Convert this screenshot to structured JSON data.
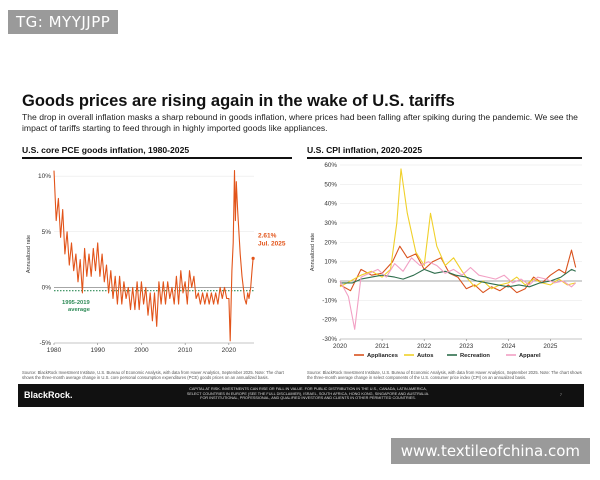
{
  "watermarks": {
    "top": "TG: MYYJJPP",
    "bottom": "www.textileofchina.com"
  },
  "slide": {
    "title": "Goods prices are rising again in the wake of U.S. tariffs",
    "subtitle": "The drop in overall inflation masks a sharp rebound in goods inflation, where prices had been falling after spiking during the pandemic. We see the impact of tariffs starting to feed through in highly imported goods like appliances."
  },
  "colors": {
    "pce": "#e2541a",
    "avg": "#2e8b57",
    "appliances": "#d9531e",
    "autos": "#f0d02a",
    "recreation": "#2f6e4d",
    "apparel": "#f2a0c4"
  },
  "chart_data": [
    {
      "type": "line",
      "title": "U.S. core PCE goods inflation, 1980-2025",
      "ylabel": "Annualized rate",
      "ylim": [
        -5,
        11
      ],
      "yticks": [
        10,
        5,
        0,
        -5
      ],
      "ytick_labels": [
        "10%",
        "5%",
        "0%",
        "-5%"
      ],
      "xlim": [
        1980,
        2025.75
      ],
      "xticks": [
        1980,
        1990,
        2000,
        2010,
        2020
      ],
      "xtick_labels": [
        "1980",
        "1990",
        "2000",
        "2010",
        "2020"
      ],
      "annotations": {
        "latest_value": "2.61%",
        "latest_date": "Jul. 2025",
        "average_label_1": "1995-2019",
        "average_label_2": "average"
      },
      "average": {
        "label": "1995-2019 average",
        "value": -0.3,
        "range": [
          1995,
          2019
        ]
      },
      "series": [
        {
          "name": "Core PCE goods",
          "points": [
            [
              1980,
              10.5
            ],
            [
              1980.5,
              6
            ],
            [
              1981,
              8
            ],
            [
              1981.5,
              4.5
            ],
            [
              1982,
              7
            ],
            [
              1982.5,
              3
            ],
            [
              1983,
              5
            ],
            [
              1983.5,
              2
            ],
            [
              1984,
              4
            ],
            [
              1984.5,
              1.5
            ],
            [
              1985,
              3
            ],
            [
              1985.5,
              0.5
            ],
            [
              1986,
              2.5
            ],
            [
              1986.5,
              -0.5
            ],
            [
              1987,
              3.5
            ],
            [
              1987.5,
              1
            ],
            [
              1988,
              3
            ],
            [
              1988.5,
              1
            ],
            [
              1989,
              3.5
            ],
            [
              1989.5,
              1.5
            ],
            [
              1990,
              4
            ],
            [
              1990.5,
              1
            ],
            [
              1991,
              3
            ],
            [
              1991.5,
              0.5
            ],
            [
              1992,
              2
            ],
            [
              1992.5,
              -0.5
            ],
            [
              1993,
              1.5
            ],
            [
              1993.5,
              -1
            ],
            [
              1994,
              1
            ],
            [
              1994.5,
              -1.5
            ],
            [
              1995,
              1
            ],
            [
              1995.5,
              -1.5
            ],
            [
              1996,
              0.5
            ],
            [
              1996.5,
              -1
            ],
            [
              1997,
              0
            ],
            [
              1997.5,
              -2
            ],
            [
              1998,
              0
            ],
            [
              1998.5,
              -2
            ],
            [
              1999,
              0.5
            ],
            [
              1999.5,
              -2
            ],
            [
              2000,
              0.5
            ],
            [
              2000.5,
              -1.5
            ],
            [
              2001,
              0
            ],
            [
              2001.5,
              -2.5
            ],
            [
              2002,
              -0.5
            ],
            [
              2002.5,
              -3
            ],
            [
              2003,
              -0.5
            ],
            [
              2003.5,
              -3.5
            ],
            [
              2004,
              0.5
            ],
            [
              2004.5,
              -1.5
            ],
            [
              2005,
              0.5
            ],
            [
              2005.5,
              -1.5
            ],
            [
              2006,
              0.5
            ],
            [
              2006.5,
              -1
            ],
            [
              2007,
              0
            ],
            [
              2007.5,
              -1.5
            ],
            [
              2008,
              1
            ],
            [
              2008.5,
              -1.5
            ],
            [
              2009,
              1.5
            ],
            [
              2009.5,
              -0.5
            ],
            [
              2010,
              0.5
            ],
            [
              2010.5,
              -1.5
            ],
            [
              2011,
              1.5
            ],
            [
              2011.5,
              0
            ],
            [
              2012,
              1
            ],
            [
              2012.5,
              -1
            ],
            [
              2013,
              -0.5
            ],
            [
              2013.5,
              -1.5
            ],
            [
              2014,
              -0.5
            ],
            [
              2014.5,
              -1.5
            ],
            [
              2015,
              -0.5
            ],
            [
              2015.5,
              -1.5
            ],
            [
              2016,
              -0.5
            ],
            [
              2016.5,
              -1.5
            ],
            [
              2017,
              -0.5
            ],
            [
              2017.5,
              -1.5
            ],
            [
              2018,
              0
            ],
            [
              2018.5,
              -1
            ],
            [
              2019,
              0
            ],
            [
              2019.5,
              -1
            ],
            [
              2020,
              -1
            ],
            [
              2020.3,
              -4.8
            ],
            [
              2020.7,
              1.5
            ],
            [
              2021,
              4
            ],
            [
              2021.3,
              10.5
            ],
            [
              2021.5,
              6
            ],
            [
              2021.7,
              9.5
            ],
            [
              2022,
              7
            ],
            [
              2022.3,
              5
            ],
            [
              2022.6,
              3
            ],
            [
              2023,
              1
            ],
            [
              2023.3,
              0
            ],
            [
              2023.6,
              -1
            ],
            [
              2024,
              -1.5
            ],
            [
              2024.3,
              -0.5
            ],
            [
              2024.6,
              -1
            ],
            [
              2025,
              0
            ],
            [
              2025.3,
              1.5
            ],
            [
              2025.55,
              2.61
            ]
          ]
        }
      ],
      "source": "Source: BlackRock Investment Institute, U.S. Bureau of Economic Analysis, with data from Haver Analytics, September 2025. Note: The chart shows the three-month average change in U.S. core personal consumption expenditures (PCE) goods prices on an annualized basis."
    },
    {
      "type": "line",
      "title": "U.S. CPI inflation, 2020-2025",
      "ylabel": "Annualized rate",
      "ylim": [
        -30,
        60
      ],
      "yticks": [
        60,
        50,
        40,
        30,
        20,
        10,
        0,
        -10,
        -20,
        -30
      ],
      "ytick_labels": [
        "60%",
        "50%",
        "40%",
        "30%",
        "20%",
        "10%",
        "0%",
        "-10%",
        "-20%",
        "-30%"
      ],
      "xlim": [
        2020,
        2025.75
      ],
      "xticks": [
        2020,
        2021,
        2022,
        2023,
        2024,
        2025
      ],
      "xtick_labels": [
        "2020",
        "2021",
        "2022",
        "2023",
        "2024",
        "2025"
      ],
      "series": [
        {
          "name": "Appliances",
          "points": [
            [
              2020,
              -2
            ],
            [
              2020.25,
              -5
            ],
            [
              2020.5,
              6
            ],
            [
              2020.75,
              3
            ],
            [
              2021,
              4
            ],
            [
              2021.25,
              10
            ],
            [
              2021.42,
              18
            ],
            [
              2021.6,
              12
            ],
            [
              2021.8,
              14
            ],
            [
              2022,
              6
            ],
            [
              2022.2,
              10
            ],
            [
              2022.4,
              12
            ],
            [
              2022.6,
              4
            ],
            [
              2022.8,
              2
            ],
            [
              2023,
              -4
            ],
            [
              2023.2,
              -2
            ],
            [
              2023.4,
              -6
            ],
            [
              2023.6,
              -3
            ],
            [
              2023.8,
              -5
            ],
            [
              2024,
              -2
            ],
            [
              2024.2,
              -6
            ],
            [
              2024.4,
              -4
            ],
            [
              2024.6,
              2
            ],
            [
              2024.8,
              -1
            ],
            [
              2025,
              3
            ],
            [
              2025.2,
              6
            ],
            [
              2025.35,
              4
            ],
            [
              2025.5,
              16
            ],
            [
              2025.6,
              7
            ]
          ]
        },
        {
          "name": "Autos",
          "points": [
            [
              2020,
              -3
            ],
            [
              2020.25,
              0
            ],
            [
              2020.5,
              3
            ],
            [
              2020.75,
              5
            ],
            [
              2021,
              2
            ],
            [
              2021.2,
              6
            ],
            [
              2021.35,
              30
            ],
            [
              2021.45,
              58
            ],
            [
              2021.6,
              35
            ],
            [
              2021.8,
              15
            ],
            [
              2022,
              8
            ],
            [
              2022.15,
              35
            ],
            [
              2022.3,
              18
            ],
            [
              2022.5,
              8
            ],
            [
              2022.7,
              12
            ],
            [
              2022.9,
              5
            ],
            [
              2023,
              2
            ],
            [
              2023.2,
              -3
            ],
            [
              2023.4,
              0
            ],
            [
              2023.6,
              -4
            ],
            [
              2023.8,
              -2
            ],
            [
              2024,
              -1
            ],
            [
              2024.2,
              2
            ],
            [
              2024.4,
              -2
            ],
            [
              2024.6,
              1
            ],
            [
              2024.8,
              -1
            ],
            [
              2025,
              -2
            ],
            [
              2025.2,
              1
            ],
            [
              2025.4,
              -2
            ],
            [
              2025.6,
              -1
            ]
          ]
        },
        {
          "name": "Recreation",
          "points": [
            [
              2020,
              -1
            ],
            [
              2020.3,
              -1
            ],
            [
              2020.5,
              1
            ],
            [
              2020.75,
              2
            ],
            [
              2021,
              3
            ],
            [
              2021.3,
              2
            ],
            [
              2021.5,
              1
            ],
            [
              2021.75,
              3
            ],
            [
              2022,
              6
            ],
            [
              2022.25,
              4
            ],
            [
              2022.5,
              5
            ],
            [
              2022.75,
              3
            ],
            [
              2023,
              2
            ],
            [
              2023.25,
              0
            ],
            [
              2023.5,
              -1
            ],
            [
              2023.75,
              -2
            ],
            [
              2024,
              -3
            ],
            [
              2024.25,
              -2
            ],
            [
              2024.5,
              -3
            ],
            [
              2024.75,
              -1
            ],
            [
              2025,
              0
            ],
            [
              2025.25,
              2
            ],
            [
              2025.5,
              6
            ],
            [
              2025.6,
              5
            ]
          ]
        },
        {
          "name": "Apparel",
          "points": [
            [
              2020,
              0
            ],
            [
              2020.2,
              -8
            ],
            [
              2020.35,
              -25
            ],
            [
              2020.5,
              2
            ],
            [
              2020.7,
              4
            ],
            [
              2020.9,
              6
            ],
            [
              2021.1,
              2
            ],
            [
              2021.3,
              9
            ],
            [
              2021.5,
              5
            ],
            [
              2021.7,
              12
            ],
            [
              2021.9,
              8
            ],
            [
              2022.1,
              10
            ],
            [
              2022.3,
              8
            ],
            [
              2022.5,
              4
            ],
            [
              2022.7,
              6
            ],
            [
              2022.9,
              3
            ],
            [
              2023.1,
              7
            ],
            [
              2023.3,
              3
            ],
            [
              2023.5,
              2
            ],
            [
              2023.7,
              1
            ],
            [
              2023.9,
              3
            ],
            [
              2024.1,
              -1
            ],
            [
              2024.3,
              1
            ],
            [
              2024.5,
              -2
            ],
            [
              2024.7,
              2
            ],
            [
              2024.9,
              1
            ],
            [
              2025.1,
              -1
            ],
            [
              2025.3,
              0
            ],
            [
              2025.5,
              -3
            ],
            [
              2025.6,
              -1
            ]
          ]
        }
      ],
      "source": "Source: BlackRock Investment Institute, U.S. Bureau of Economic Analysis, with data from Haver Analytics, September 2025. Note: The chart shows the three-month average change in select components of the U.S. consumer price index (CPI) on an annualized basis."
    }
  ],
  "footer": {
    "brand": "BlackRock.",
    "disclaimer_1": "CAPITAL AT RISK. INVESTMENTS CAN RISE OR FALL IN VALUE. FOR PUBLIC DISTRIBUTION IN THE U.S., CANADA, LATIN AMERICA,",
    "disclaimer_2": "SELECT COUNTRIES IN EUROPE (SEE THE FULL DISCLAIMER), ISRAEL, SOUTH AFRICA, HONG KONG, SINGAPORE AND AUSTRALIA.",
    "disclaimer_3": "FOR INSTITUTIONAL, PROFESSIONAL, AND QUALIFIED INVESTORS AND CLIENTS IN OTHER PERMITTED COUNTRIES.",
    "page": "7"
  }
}
